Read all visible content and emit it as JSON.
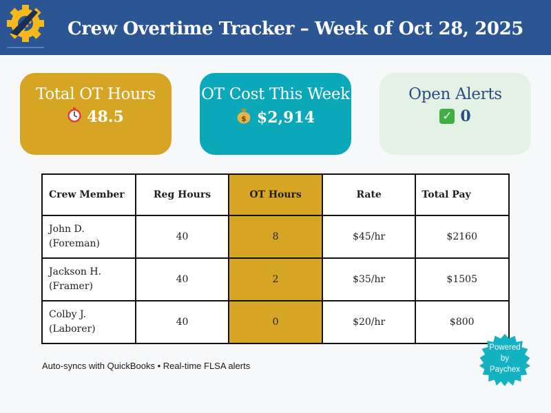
{
  "header": {
    "title": "Crew Overtime Tracker – Week of Oct 28, 2025",
    "logo_icon": "gear-road-logo-icon",
    "colors": {
      "background": "#2c5594",
      "accent": "#f5b81d"
    }
  },
  "cards": {
    "ot_hours": {
      "label": "Total OT Hours",
      "icon": "stopwatch-icon",
      "value": "48.5",
      "color": "#d6a523"
    },
    "ot_cost": {
      "label": "OT Cost This Week",
      "icon": "money-bag-icon",
      "value": "$2,914",
      "color": "#0aa8b9"
    },
    "alerts": {
      "label": "Open Alerts",
      "icon": "check-box-icon",
      "value": "0",
      "color": "#e3f2e4"
    }
  },
  "table": {
    "headers": {
      "name": "Crew Member",
      "reg": "Reg Hours",
      "ot": "OT Hours",
      "rate": "Rate",
      "total": "Total Pay"
    },
    "rows": [
      {
        "name": "John D.",
        "role": "(Foreman)",
        "reg": "40",
        "ot": "8",
        "rate": "$45/hr",
        "total": "$2160"
      },
      {
        "name": "Jackson H.",
        "role": "(Framer)",
        "reg": "40",
        "ot": "2",
        "rate": "$35/hr",
        "total": "$1505"
      },
      {
        "name": "Colby J.",
        "role": "(Laborer)",
        "reg": "40",
        "ot": "0",
        "rate": "$20/hr",
        "total": "$800"
      }
    ],
    "highlight_color": "#d6a523"
  },
  "footer": {
    "note": "Auto-syncs with QuickBooks • Real-time FLSA alerts"
  },
  "badge": {
    "line1": "Powered",
    "line2": "by",
    "line3": "Paychex",
    "color": "#13b2c2"
  }
}
